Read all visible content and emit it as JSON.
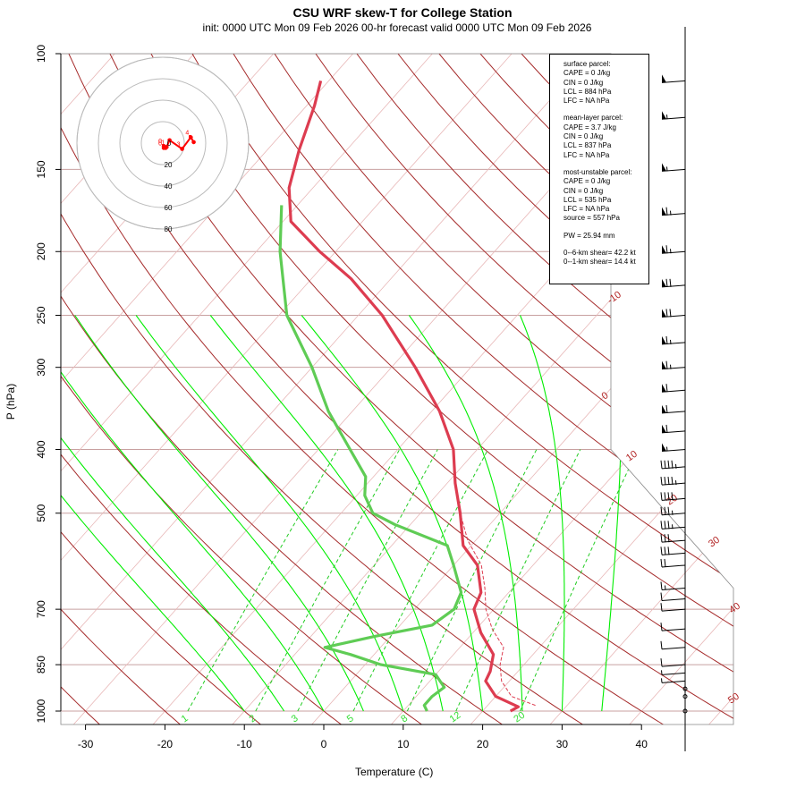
{
  "title": "CSU WRF skew-T for College Station",
  "subtitle": "init: 0000 UTC Mon 09 Feb 2026     00-hr forecast valid 0000 UTC Mon 09 Feb 2026",
  "colors": {
    "temperature": "#dd3c50",
    "dewpoint": "#5fcc55",
    "isotherm": "#8b0000",
    "dry_adiabat": "#a52a2a",
    "moist_adiabat": "#00ee00",
    "mixing_ratio": "#22cc22",
    "hodograph": "#ff0000",
    "barb": "#000000"
  },
  "chart_data": {
    "type": "skew-t",
    "xlabel": "Temperature (C)",
    "ylabel": "P (hPa)",
    "xlim": [
      -33,
      52
    ],
    "ylim_hpa": [
      1000,
      100
    ],
    "x_ticks": [
      "-30",
      "-20",
      "-10",
      "0",
      "10",
      "20",
      "30",
      "40"
    ],
    "y_ticks": [
      "100",
      "150",
      "200",
      "250",
      "300",
      "400",
      "500",
      "700",
      "850",
      "1000"
    ],
    "isotherm_labels": [
      "-10",
      "0",
      "10",
      "20",
      "30",
      "40",
      "50"
    ],
    "mixing_ratio_labels": [
      "1",
      "2",
      "3",
      "5",
      "8",
      "12",
      "20"
    ],
    "temperature_profile": [
      {
        "p": 1000,
        "t": 23.5
      },
      {
        "p": 985,
        "t": 24
      },
      {
        "p": 950,
        "t": 20
      },
      {
        "p": 900,
        "t": 17
      },
      {
        "p": 870,
        "t": 16.5
      },
      {
        "p": 820,
        "t": 15
      },
      {
        "p": 760,
        "t": 11
      },
      {
        "p": 700,
        "t": 7.5
      },
      {
        "p": 660,
        "t": 6.5
      },
      {
        "p": 600,
        "t": 3
      },
      {
        "p": 560,
        "t": -1
      },
      {
        "p": 500,
        "t": -5
      },
      {
        "p": 450,
        "t": -9
      },
      {
        "p": 400,
        "t": -13
      },
      {
        "p": 350,
        "t": -19
      },
      {
        "p": 300,
        "t": -27
      },
      {
        "p": 250,
        "t": -37
      },
      {
        "p": 220,
        "t": -45
      },
      {
        "p": 200,
        "t": -52
      },
      {
        "p": 180,
        "t": -59
      },
      {
        "p": 160,
        "t": -63
      },
      {
        "p": 140,
        "t": -66
      },
      {
        "p": 120,
        "t": -69
      },
      {
        "p": 110,
        "t": -71
      }
    ],
    "parcel_profile": [
      {
        "p": 980,
        "t": 26
      },
      {
        "p": 950,
        "t": 22
      },
      {
        "p": 900,
        "t": 19
      },
      {
        "p": 850,
        "t": 17
      },
      {
        "p": 800,
        "t": 15.5
      },
      {
        "p": 750,
        "t": 12
      },
      {
        "p": 700,
        "t": 9
      },
      {
        "p": 650,
        "t": 6.5
      },
      {
        "p": 600,
        "t": 3.5
      },
      {
        "p": 550,
        "t": -1
      },
      {
        "p": 500,
        "t": -5
      },
      {
        "p": 450,
        "t": -9
      }
    ],
    "dewpoint_profile": [
      {
        "p": 1000,
        "t": 13
      },
      {
        "p": 980,
        "t": 12
      },
      {
        "p": 950,
        "t": 12
      },
      {
        "p": 920,
        "t": 12.5
      },
      {
        "p": 880,
        "t": 10
      },
      {
        "p": 850,
        "t": 2
      },
      {
        "p": 820,
        "t": -3
      },
      {
        "p": 800,
        "t": -7
      },
      {
        "p": 770,
        "t": -2
      },
      {
        "p": 740,
        "t": 4
      },
      {
        "p": 700,
        "t": 5
      },
      {
        "p": 660,
        "t": 4
      },
      {
        "p": 600,
        "t": 0
      },
      {
        "p": 560,
        "t": -3
      },
      {
        "p": 520,
        "t": -12
      },
      {
        "p": 500,
        "t": -16
      },
      {
        "p": 470,
        "t": -19
      },
      {
        "p": 440,
        "t": -21
      },
      {
        "p": 400,
        "t": -26
      },
      {
        "p": 350,
        "t": -33
      },
      {
        "p": 300,
        "t": -40
      },
      {
        "p": 250,
        "t": -49
      },
      {
        "p": 200,
        "t": -57
      },
      {
        "p": 170,
        "t": -62
      }
    ],
    "wind_barbs": [
      {
        "p": 1000,
        "speed": 0
      },
      {
        "p": 950,
        "speed": 0
      },
      {
        "p": 925,
        "speed": 0
      },
      {
        "p": 900,
        "speed": 5
      },
      {
        "p": 875,
        "speed": 5
      },
      {
        "p": 850,
        "speed": 10
      },
      {
        "p": 800,
        "speed": 10
      },
      {
        "p": 750,
        "speed": 10
      },
      {
        "p": 700,
        "speed": 10
      },
      {
        "p": 675,
        "speed": 10
      },
      {
        "p": 650,
        "speed": 15
      },
      {
        "p": 600,
        "speed": 20
      },
      {
        "p": 575,
        "speed": 30
      },
      {
        "p": 550,
        "speed": 30
      },
      {
        "p": 525,
        "speed": 35
      },
      {
        "p": 500,
        "speed": 35
      },
      {
        "p": 475,
        "speed": 40
      },
      {
        "p": 450,
        "speed": 45
      },
      {
        "p": 425,
        "speed": 45
      },
      {
        "p": 400,
        "speed": 55
      },
      {
        "p": 375,
        "speed": 60
      },
      {
        "p": 350,
        "speed": 60
      },
      {
        "p": 325,
        "speed": 60
      },
      {
        "p": 300,
        "speed": 65
      },
      {
        "p": 275,
        "speed": 65
      },
      {
        "p": 250,
        "speed": 70
      },
      {
        "p": 225,
        "speed": 70
      },
      {
        "p": 200,
        "speed": 65
      },
      {
        "p": 175,
        "speed": 65
      },
      {
        "p": 150,
        "speed": 55
      },
      {
        "p": 125,
        "speed": 55
      },
      {
        "p": 110,
        "speed": 50
      }
    ],
    "hodograph": {
      "ring_labels": [
        "20",
        "40",
        "60",
        "80"
      ],
      "points": [
        {
          "u": 0.5,
          "v": -1.5
        },
        {
          "u": 0.5,
          "v": -2.5
        },
        {
          "u": 1.5,
          "v": -2.5
        },
        {
          "u": 2,
          "v": -2
        },
        {
          "u": 3.5,
          "v": 1.5
        },
        {
          "u": 10,
          "v": -3
        },
        {
          "u": 14.5,
          "v": 3
        },
        {
          "u": 16,
          "v": 0.5
        }
      ],
      "height_labels": [
        "0",
        "0",
        "1",
        "3",
        "4",
        "5"
      ]
    }
  },
  "infobox": {
    "surface": [
      "surface parcel:",
      "CAPE = 0 J/kg",
      "CIN = 0 J/kg",
      "LCL = 884 hPa",
      "LFC = NA hPa"
    ],
    "mean_layer": [
      "mean-layer parcel:",
      "CAPE = 3.7 J/kg",
      "CIN = 0 J/kg",
      "LCL = 837 hPa",
      "LFC = NA hPa"
    ],
    "most_unstable": [
      "most-unstable parcel:",
      "CAPE = 0 J/kg",
      "CIN = 0 J/kg",
      "LCL = 535 hPa",
      "LFC = NA hPa",
      "source = 557 hPa"
    ],
    "pw": [
      "PW =  25.94 mm"
    ],
    "shear": [
      "0--6-km shear= 42.2 kt",
      "0--1-km shear= 14.4 kt"
    ]
  }
}
